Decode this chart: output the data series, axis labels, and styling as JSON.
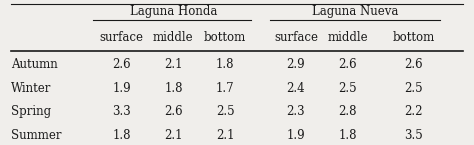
{
  "group_headers": [
    "Laguna Honda",
    "Laguna Nueva"
  ],
  "col_headers": [
    "surface",
    "middle",
    "bottom",
    "surface",
    "middle",
    "bottom"
  ],
  "row_labels": [
    "Autumn",
    "Winter",
    "Spring",
    "Summer"
  ],
  "table_data": [
    [
      "2.6",
      "2.1",
      "1.8",
      "2.9",
      "2.6",
      "2.6"
    ],
    [
      "1.9",
      "1.8",
      "1.7",
      "2.4",
      "2.5",
      "2.5"
    ],
    [
      "3.3",
      "2.6",
      "2.5",
      "2.3",
      "2.8",
      "2.2"
    ],
    [
      "1.8",
      "2.1",
      "2.1",
      "1.9",
      "1.8",
      "3.5"
    ]
  ],
  "bg_color": "#f0eeeb",
  "text_color": "#1a1a1a",
  "font_size": 8.5,
  "header_font_size": 8.5
}
